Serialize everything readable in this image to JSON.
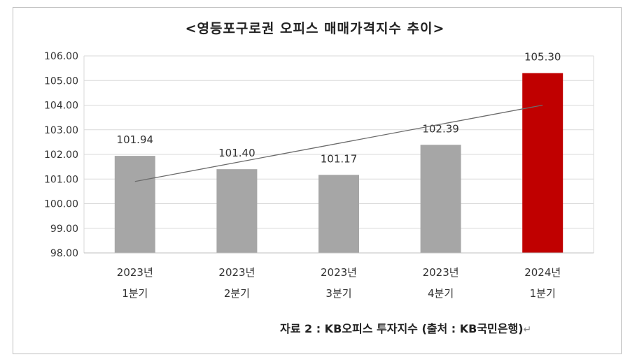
{
  "title": "<영등포구로권 오피스 매매가격지수 추이>",
  "source": "자료 2 : KB오피스 투자지수 (출처 : KB국민은행)",
  "chart_data": {
    "type": "bar",
    "categories": [
      [
        "2023년",
        "1분기"
      ],
      [
        "2023년",
        "2분기"
      ],
      [
        "2023년",
        "3분기"
      ],
      [
        "2023년",
        "4분기"
      ],
      [
        "2024년",
        "1분기"
      ]
    ],
    "values": [
      101.94,
      101.4,
      101.17,
      102.39,
      105.3
    ],
    "value_labels": [
      "101.94",
      "101.40",
      "101.17",
      "102.39",
      "105.30"
    ],
    "yticks": [
      "98.00",
      "99.00",
      "100.00",
      "101.00",
      "102.00",
      "103.00",
      "104.00",
      "105.00",
      "106.00"
    ],
    "ylim": [
      98,
      106
    ],
    "grid": true,
    "trendline": {
      "type": "linear",
      "start": 100.9,
      "end": 104.0
    },
    "colors": {
      "default": "#a6a6a6",
      "highlight": "#c00000",
      "highlight_index": 4,
      "grid": "#d9d9d9",
      "trend": "#6b6b6b"
    }
  }
}
